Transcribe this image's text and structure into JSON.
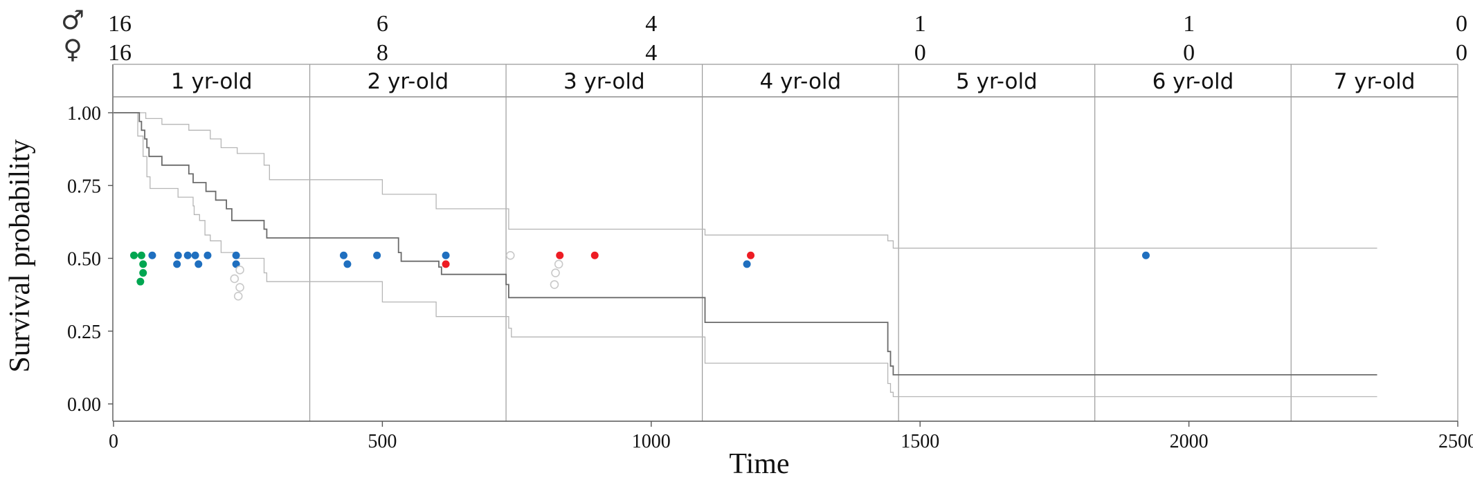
{
  "chart_data": {
    "type": "line",
    "subtype": "kaplan-meier survival curve with confidence band and event markers",
    "xlabel": "Time",
    "ylabel": "Survival probability",
    "xlim": [
      0,
      2500
    ],
    "ylim": [
      0,
      1.05
    ],
    "x_ticks": [
      0,
      500,
      1000,
      1500,
      2000,
      2500
    ],
    "x_tick_labels": [
      "0",
      "500",
      "1000",
      "1500",
      "2000",
      "2500"
    ],
    "y_ticks": [
      0,
      0.25,
      0.5,
      0.75,
      1.0
    ],
    "y_tick_labels": [
      "0.00",
      "0.25",
      "0.50",
      "0.75",
      "1.00"
    ],
    "grid": false,
    "age_bands": {
      "labels": [
        "1 yr-old",
        "2 yr-old",
        "3 yr-old",
        "4 yr-old",
        "5 yr-old",
        "6 yr-old",
        "7 yr-old"
      ],
      "boundaries": [
        0,
        365,
        730,
        1095,
        1460,
        1825,
        2190,
        2500
      ]
    },
    "risk_table": {
      "male_symbol": "♂",
      "female_symbol": "♀",
      "x": [
        0,
        500,
        1000,
        1500,
        2000,
        2500
      ],
      "male": [
        "16",
        "6",
        "4",
        "1",
        "1",
        "0"
      ],
      "female": [
        "16",
        "8",
        "4",
        "0",
        "0",
        "0"
      ]
    },
    "series": [
      {
        "role": "estimate",
        "color": "#6a6a6a",
        "steps": [
          [
            0,
            1.0
          ],
          [
            48,
            0.97
          ],
          [
            52,
            0.94
          ],
          [
            58,
            0.91
          ],
          [
            62,
            0.88
          ],
          [
            66,
            0.85
          ],
          [
            90,
            0.82
          ],
          [
            140,
            0.79
          ],
          [
            148,
            0.76
          ],
          [
            172,
            0.73
          ],
          [
            190,
            0.7
          ],
          [
            210,
            0.67
          ],
          [
            220,
            0.63
          ],
          [
            280,
            0.6
          ],
          [
            285,
            0.57
          ],
          [
            530,
            0.52
          ],
          [
            535,
            0.49
          ],
          [
            605,
            0.47
          ],
          [
            610,
            0.445
          ],
          [
            730,
            0.41
          ],
          [
            735,
            0.365
          ],
          [
            1100,
            0.28
          ],
          [
            1440,
            0.18
          ],
          [
            1445,
            0.13
          ],
          [
            1450,
            0.1
          ],
          [
            2350,
            0.1
          ]
        ]
      },
      {
        "role": "upper-ci",
        "color": "#b5b5b5",
        "steps": [
          [
            0,
            1.0
          ],
          [
            60,
            0.98
          ],
          [
            90,
            0.96
          ],
          [
            140,
            0.94
          ],
          [
            180,
            0.91
          ],
          [
            200,
            0.88
          ],
          [
            230,
            0.86
          ],
          [
            280,
            0.82
          ],
          [
            290,
            0.77
          ],
          [
            500,
            0.72
          ],
          [
            600,
            0.67
          ],
          [
            735,
            0.6
          ],
          [
            1100,
            0.58
          ],
          [
            1440,
            0.56
          ],
          [
            1450,
            0.535
          ],
          [
            2350,
            0.535
          ]
        ]
      },
      {
        "role": "lower-ci",
        "color": "#b5b5b5",
        "steps": [
          [
            0,
            1.0
          ],
          [
            45,
            0.92
          ],
          [
            55,
            0.85
          ],
          [
            62,
            0.78
          ],
          [
            68,
            0.74
          ],
          [
            120,
            0.71
          ],
          [
            148,
            0.68
          ],
          [
            150,
            0.65
          ],
          [
            160,
            0.63
          ],
          [
            170,
            0.58
          ],
          [
            180,
            0.56
          ],
          [
            200,
            0.52
          ],
          [
            230,
            0.5
          ],
          [
            280,
            0.45
          ],
          [
            285,
            0.42
          ],
          [
            500,
            0.35
          ],
          [
            600,
            0.3
          ],
          [
            735,
            0.26
          ],
          [
            740,
            0.23
          ],
          [
            1100,
            0.14
          ],
          [
            1440,
            0.07
          ],
          [
            1445,
            0.04
          ],
          [
            1450,
            0.025
          ],
          [
            2350,
            0.025
          ]
        ]
      }
    ],
    "point_groups": [
      {
        "color": "#00a651",
        "filled": true,
        "points": [
          [
            38,
            0.51
          ],
          [
            52,
            0.51
          ],
          [
            55,
            0.48
          ],
          [
            55,
            0.45
          ],
          [
            50,
            0.42
          ]
        ]
      },
      {
        "color": "#1f6fbf",
        "filled": true,
        "points": [
          [
            72,
            0.51
          ],
          [
            118,
            0.48
          ],
          [
            120,
            0.51
          ],
          [
            138,
            0.51
          ],
          [
            152,
            0.51
          ],
          [
            158,
            0.48
          ],
          [
            175,
            0.51
          ],
          [
            228,
            0.51
          ],
          [
            228,
            0.48
          ],
          [
            428,
            0.51
          ],
          [
            435,
            0.48
          ],
          [
            490,
            0.51
          ],
          [
            618,
            0.51
          ],
          [
            1178,
            0.48
          ],
          [
            1920,
            0.51
          ]
        ]
      },
      {
        "color": "#ed1c24",
        "filled": true,
        "points": [
          [
            618,
            0.48
          ],
          [
            830,
            0.51
          ],
          [
            895,
            0.51
          ],
          [
            1185,
            0.51
          ]
        ]
      },
      {
        "color": "#c9c9c9",
        "filled": false,
        "points": [
          [
            225,
            0.43
          ],
          [
            235,
            0.46
          ],
          [
            235,
            0.4
          ],
          [
            232,
            0.37
          ],
          [
            738,
            0.51
          ],
          [
            828,
            0.48
          ],
          [
            822,
            0.45
          ],
          [
            820,
            0.41
          ]
        ]
      }
    ]
  }
}
